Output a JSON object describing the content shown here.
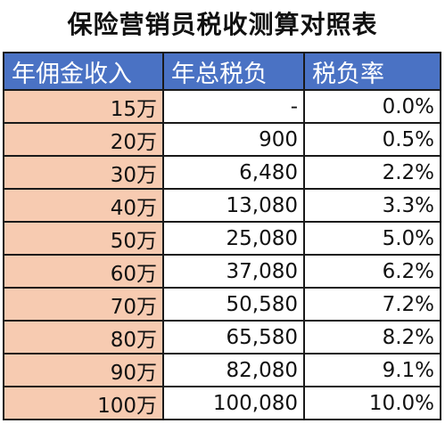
{
  "title": "保险营销员税收测算对照表",
  "headers": [
    "年佣金收入",
    "年总税负",
    "税负率"
  ],
  "rows": [
    {
      "income": "15万",
      "tax": "-",
      "rate": "0.0%"
    },
    {
      "income": "20万",
      "tax": "900",
      "rate": "0.5%"
    },
    {
      "income": "30万",
      "tax": "6,480",
      "rate": "2.2%"
    },
    {
      "income": "40万",
      "tax": "13,080",
      "rate": "3.3%"
    },
    {
      "income": "50万",
      "tax": "25,080",
      "rate": "5.0%"
    },
    {
      "income": "60万",
      "tax": "37,080",
      "rate": "6.2%"
    },
    {
      "income": "70万",
      "tax": "50,580",
      "rate": "7.2%"
    },
    {
      "income": "80万",
      "tax": "65,580",
      "rate": "8.2%"
    },
    {
      "income": "90万",
      "tax": "82,080",
      "rate": "9.1%"
    },
    {
      "income": "100万",
      "tax": "100,080",
      "rate": "10.0%"
    }
  ],
  "colors": {
    "header_background": "#4a72c4",
    "header_text": "#ffffff",
    "income_column_background": "#f7cbb1",
    "border": "#1a1a1a"
  }
}
